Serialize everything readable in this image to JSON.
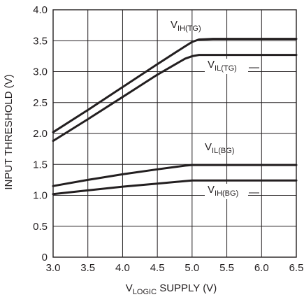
{
  "chart_data": {
    "type": "line",
    "title": "",
    "xlabel": {
      "main": "V",
      "sub": "LOGIC",
      "tail": " SUPPLY (V)"
    },
    "ylabel": "INPUT THRESHOLD (V)",
    "xlim": [
      3.0,
      6.5
    ],
    "ylim": [
      0,
      4.0
    ],
    "grid": true,
    "x_ticks": [
      "3.0",
      "3.5",
      "4.0",
      "4.5",
      "5.0",
      "5.5",
      "6.0",
      "6.5"
    ],
    "y_ticks": [
      "0",
      "0.5",
      "1.0",
      "1.5",
      "2.0",
      "2.5",
      "3.0",
      "3.5",
      "4.0"
    ],
    "series": [
      {
        "name": "V_IH(TG)",
        "label_main": "V",
        "label_sub": "IH(TG)",
        "x": [
          3.0,
          3.5,
          4.0,
          4.5,
          4.9,
          5.0,
          5.1,
          5.3,
          5.6,
          6.0,
          6.5
        ],
        "y": [
          2.02,
          2.38,
          2.75,
          3.12,
          3.41,
          3.48,
          3.52,
          3.53,
          3.53,
          3.53,
          3.53
        ]
      },
      {
        "name": "V_IL(TG)",
        "label_main": "V",
        "label_sub": "IL(TG)",
        "x": [
          3.0,
          3.5,
          4.0,
          4.5,
          4.9,
          5.0,
          5.1,
          5.3,
          5.6,
          6.0,
          6.5
        ],
        "y": [
          1.88,
          2.23,
          2.59,
          2.95,
          3.21,
          3.25,
          3.27,
          3.27,
          3.27,
          3.27,
          3.27
        ]
      },
      {
        "name": "V_IL(BG)",
        "label_main": "V",
        "label_sub": "IL(BG)",
        "x": [
          3.0,
          3.5,
          4.0,
          4.5,
          4.9,
          5.0,
          5.1,
          5.5,
          6.0,
          6.5
        ],
        "y": [
          1.15,
          1.25,
          1.34,
          1.42,
          1.48,
          1.49,
          1.49,
          1.49,
          1.49,
          1.49
        ]
      },
      {
        "name": "V_IH(BG)",
        "label_main": "V",
        "label_sub": "IH(BG)",
        "x": [
          3.0,
          3.5,
          4.0,
          4.5,
          4.9,
          5.0,
          5.1,
          5.5,
          6.0,
          6.5
        ],
        "y": [
          1.02,
          1.08,
          1.14,
          1.19,
          1.23,
          1.24,
          1.24,
          1.24,
          1.24,
          1.24
        ]
      }
    ]
  }
}
